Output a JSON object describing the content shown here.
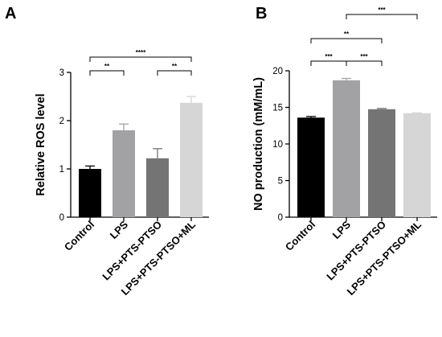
{
  "chart_data": [
    {
      "panel": "A",
      "type": "bar",
      "categories": [
        "Control",
        "LPS",
        "LPS+PTS-PTSO",
        "LPS+PTS-PTSO+ML"
      ],
      "values": [
        1.0,
        1.8,
        1.22,
        2.37
      ],
      "errors": [
        0.06,
        0.13,
        0.2,
        0.13
      ],
      "colors": [
        "#000000",
        "#a2a2a4",
        "#747474",
        "#d6d6d6"
      ],
      "ylabel": "Relative ROS level",
      "ylim": [
        0,
        3
      ],
      "yticks": [
        0,
        1,
        2,
        3
      ],
      "grid": false,
      "significance": [
        {
          "from": 0,
          "to": 1,
          "label": "**"
        },
        {
          "from": 2,
          "to": 3,
          "label": "**"
        },
        {
          "from": 0,
          "to": 3,
          "label": "****"
        }
      ]
    },
    {
      "panel": "B",
      "type": "bar",
      "categories": [
        "Control",
        "LPS",
        "LPS+PTS-PTSO",
        "LPS+PTS-PTSO+ML"
      ],
      "values": [
        13.6,
        18.7,
        14.75,
        14.2
      ],
      "errors": [
        0.15,
        0.25,
        0.1,
        0.05
      ],
      "colors": [
        "#000000",
        "#a2a2a4",
        "#747474",
        "#d6d6d6"
      ],
      "ylabel": "NO production (mM/mL)",
      "ylim": [
        0,
        20
      ],
      "yticks": [
        0,
        5,
        10,
        15,
        20
      ],
      "grid": false,
      "significance": [
        {
          "from": 0,
          "to": 1,
          "label": "***"
        },
        {
          "from": 1,
          "to": 2,
          "label": "***"
        },
        {
          "from": 0,
          "to": 2,
          "label": "**"
        },
        {
          "from": 1,
          "to": 3,
          "label": "***"
        }
      ]
    }
  ]
}
